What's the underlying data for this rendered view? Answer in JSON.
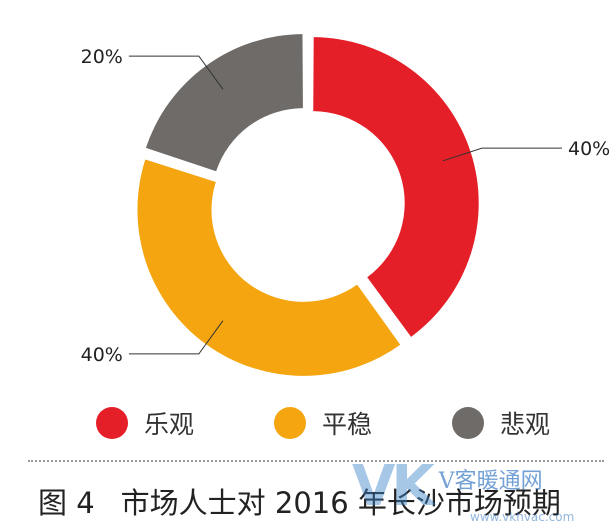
{
  "chart_data": {
    "type": "pie",
    "style": "donut",
    "title": "",
    "slices": [
      {
        "label": "乐观",
        "value": 40,
        "value_label": "40%",
        "color": "#e51f28"
      },
      {
        "label": "平稳",
        "value": 40,
        "value_label": "40%",
        "color": "#f4a50f"
      },
      {
        "label": "悲观",
        "value": 20,
        "value_label": "20%",
        "color": "#6e6b68"
      }
    ],
    "legend_position": "bottom"
  },
  "caption": {
    "figure_number": "图 4",
    "text": "市场人士对 2016 年长沙市场预期"
  },
  "watermark": {
    "logo": "VK",
    "text": "V客暖通网",
    "url": "www.vkhvac.com"
  }
}
